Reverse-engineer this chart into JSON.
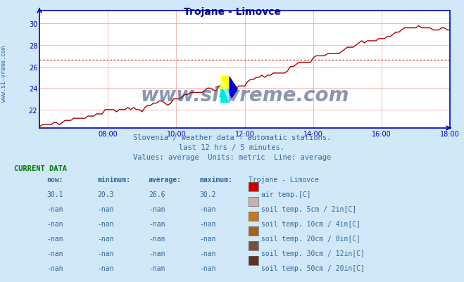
{
  "title": "Trojane - Limovce",
  "title_color": "#000080",
  "bg_color": "#d0e8f8",
  "plot_bg_color": "#ffffff",
  "grid_color": "#f0a0a0",
  "axis_color": "#0000bb",
  "text_color": "#336699",
  "watermark_text": "www.si-vreme.com",
  "watermark_color": "#1a3060",
  "subtitle1": "Slovenia / weather data - automatic stations.",
  "subtitle2": "last 12 hrs / 5 minutes.",
  "subtitle3": "Values: average  Units: metric  Line: average",
  "xlabel_times": [
    "08:00",
    "10:00",
    "12:00",
    "14:00",
    "16:00",
    "18:00"
  ],
  "ylabel_values": [
    22,
    24,
    26,
    28,
    30
  ],
  "ylim": [
    20.3,
    31.2
  ],
  "xlim": [
    0,
    144
  ],
  "average_line_y": 26.6,
  "line_color": "#aa0000",
  "avg_line_color": "#cc2222",
  "current_data_label": "CURRENT DATA",
  "col_headers": [
    "now:",
    "minimum:",
    "average:",
    "maximum:",
    "Trojane - Limovce"
  ],
  "rows": [
    {
      "now": "30.1",
      "min": "20.3",
      "avg": "26.6",
      "max": "30.2",
      "color": "#cc0000",
      "label": "air temp.[C]"
    },
    {
      "now": "-nan",
      "min": "-nan",
      "avg": "-nan",
      "max": "-nan",
      "color": "#c8b0b0",
      "label": "soil temp. 5cm / 2in[C]"
    },
    {
      "now": "-nan",
      "min": "-nan",
      "avg": "-nan",
      "max": "-nan",
      "color": "#c07828",
      "label": "soil temp. 10cm / 4in[C]"
    },
    {
      "now": "-nan",
      "min": "-nan",
      "avg": "-nan",
      "max": "-nan",
      "color": "#a86020",
      "label": "soil temp. 20cm / 8in[C]"
    },
    {
      "now": "-nan",
      "min": "-nan",
      "avg": "-nan",
      "max": "-nan",
      "color": "#785040",
      "label": "soil temp. 30cm / 12in[C]"
    },
    {
      "now": "-nan",
      "min": "-nan",
      "avg": "-nan",
      "max": "-nan",
      "color": "#603020",
      "label": "soil temp. 50cm / 20in[C]"
    }
  ]
}
